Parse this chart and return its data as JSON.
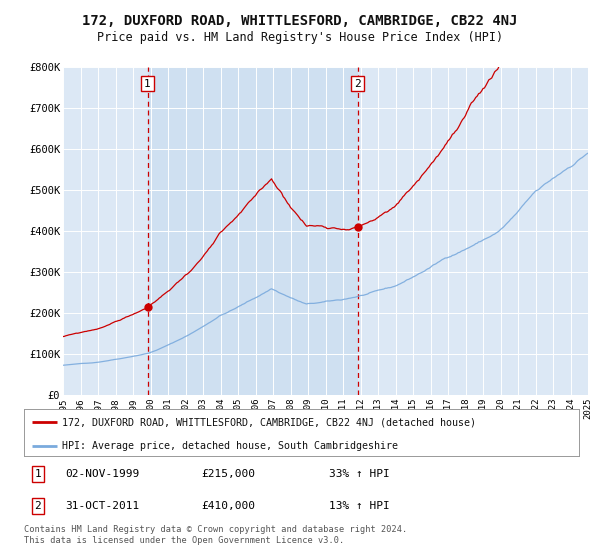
{
  "title": "172, DUXFORD ROAD, WHITTLESFORD, CAMBRIDGE, CB22 4NJ",
  "subtitle": "Price paid vs. HM Land Registry's House Price Index (HPI)",
  "title_fontsize": 10,
  "subtitle_fontsize": 8.5,
  "background_color": "#ffffff",
  "plot_bg_color": "#dce8f5",
  "grid_color": "#ffffff",
  "year_start": 1995,
  "year_end": 2025,
  "ylim": [
    0,
    800000
  ],
  "yticks": [
    0,
    100000,
    200000,
    300000,
    400000,
    500000,
    600000,
    700000,
    800000
  ],
  "ytick_labels": [
    "£0",
    "£100K",
    "£200K",
    "£300K",
    "£400K",
    "£500K",
    "£600K",
    "£700K",
    "£800K"
  ],
  "purchase1_year": 1999.83,
  "purchase1_price": 215000,
  "purchase2_year": 2011.83,
  "purchase2_price": 410000,
  "shaded_region": [
    1999.83,
    2011.83
  ],
  "red_color": "#cc0000",
  "blue_color": "#7aaadd",
  "legend_label_red": "172, DUXFORD ROAD, WHITTLESFORD, CAMBRIDGE, CB22 4NJ (detached house)",
  "legend_label_blue": "HPI: Average price, detached house, South Cambridgeshire",
  "note1_date": "02-NOV-1999",
  "note1_price": "£215,000",
  "note1_hpi": "33% ↑ HPI",
  "note2_date": "31-OCT-2011",
  "note2_price": "£410,000",
  "note2_hpi": "13% ↑ HPI",
  "footer": "Contains HM Land Registry data © Crown copyright and database right 2024.\nThis data is licensed under the Open Government Licence v3.0."
}
